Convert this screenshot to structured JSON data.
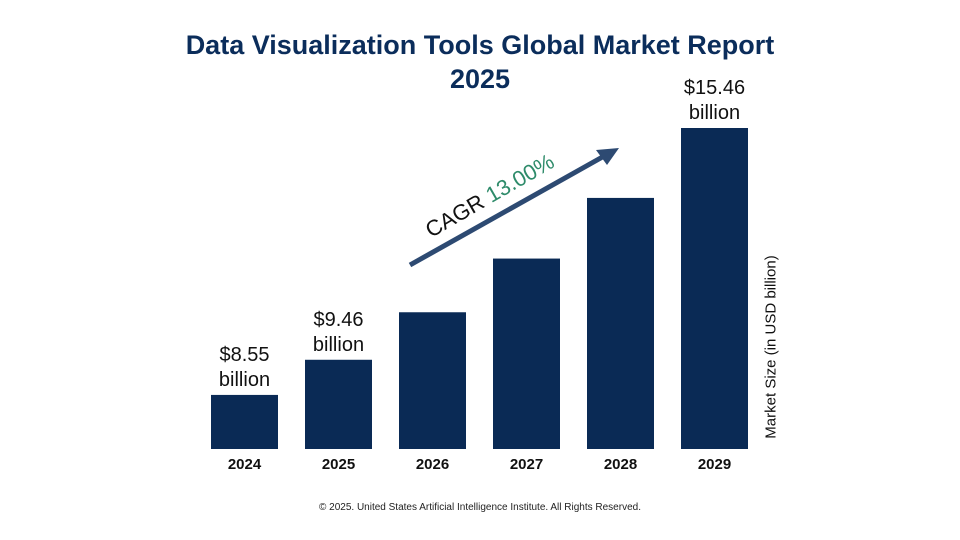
{
  "chart_data": {
    "type": "bar",
    "title": "Data Visualization Tools Global Market Report 2025",
    "categories": [
      "2024",
      "2025",
      "2026",
      "2027",
      "2028",
      "2029"
    ],
    "values": [
      8.55,
      9.46,
      10.69,
      12.08,
      13.65,
      15.46
    ],
    "data_labels": {
      "2024": [
        "$8.55",
        "billion"
      ],
      "2025": [
        "$9.46",
        "billion"
      ],
      "2029": [
        "$15.46",
        "billion"
      ]
    },
    "xlabel": "",
    "ylabel": "Market Size (in USD billion)",
    "ylim": [
      7.15,
      15.46
    ],
    "annotation": {
      "prefix": "CAGR",
      "value": "13.00%"
    },
    "grid": false,
    "colors": {
      "bar": "#0a2a55",
      "arrow": "#2d4a72",
      "cagr": "#2e8b6a",
      "title": "#0b2d5b"
    }
  },
  "footer": "© 2025. United States Artificial Intelligence Institute. All Rights Reserved."
}
